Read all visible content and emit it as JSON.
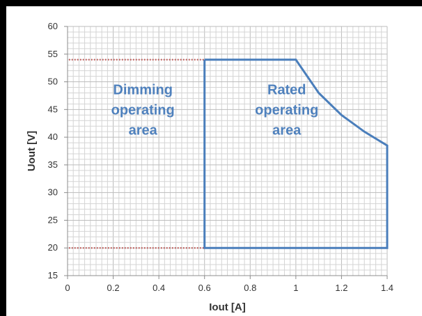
{
  "chart_data": {
    "type": "line",
    "xlabel": "Iout [A]",
    "ylabel": "Uout [V]",
    "xlim": [
      0,
      1.4
    ],
    "ylim": [
      15,
      60
    ],
    "x_ticks": [
      "0",
      "0.2",
      "0.4",
      "0.6",
      "0.8",
      "1",
      "1.2",
      "1.4"
    ],
    "y_ticks": [
      "15",
      "20",
      "25",
      "30",
      "35",
      "40",
      "45",
      "50",
      "55",
      "60"
    ],
    "grid": true,
    "series": [
      {
        "x": [
          0.6,
          1.0,
          1.05,
          1.1,
          1.2,
          1.3,
          1.4,
          1.4,
          0.6,
          0.6
        ],
        "y": [
          54,
          54,
          51,
          48,
          44,
          41,
          38.5,
          20,
          20,
          54
        ],
        "color": "#4a7ebb"
      }
    ],
    "reference_lines": [
      {
        "y": 54,
        "x": [
          0,
          0.6
        ],
        "style": "dotted",
        "color": "#c0504d"
      },
      {
        "y": 20,
        "x": [
          0,
          0.6
        ],
        "style": "dotted",
        "color": "#c0504d"
      }
    ],
    "annotations": [
      {
        "lines": [
          "Dimming",
          "operating",
          "area"
        ],
        "color": "#4f81bd"
      },
      {
        "lines": [
          "Rated",
          "operating",
          "area"
        ],
        "color": "#4f81bd"
      }
    ]
  }
}
